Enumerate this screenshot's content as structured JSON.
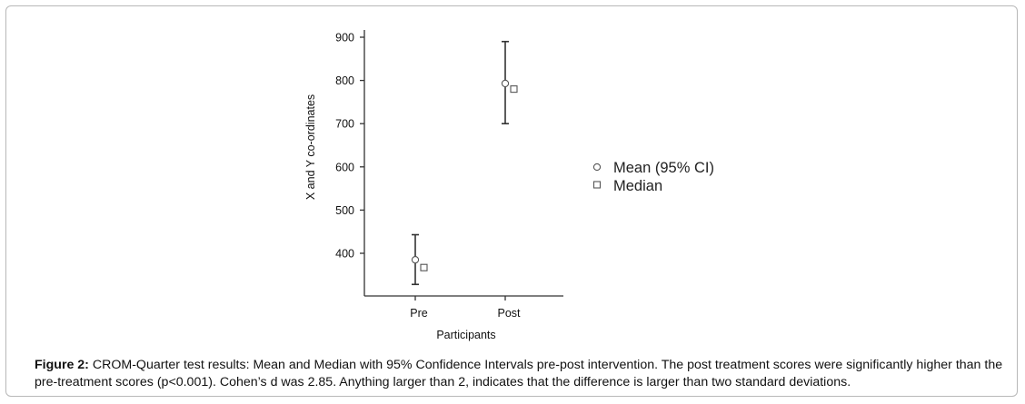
{
  "chart_data": {
    "type": "scatter",
    "categories": [
      "Pre",
      "Post"
    ],
    "series": [
      {
        "name": "Mean (95% CI)",
        "marker": "circle",
        "values": [
          385,
          793
        ],
        "ci_low": [
          328,
          700
        ],
        "ci_high": [
          443,
          890
        ]
      },
      {
        "name": "Median",
        "marker": "square",
        "values": [
          367,
          780
        ]
      }
    ],
    "xlabel": "Participants",
    "ylabel": "X and Y co-ordinates",
    "yticks": [
      400,
      500,
      600,
      700,
      800,
      900
    ],
    "ylim": [
      310,
      910
    ],
    "grid": false,
    "legend_position": "right",
    "colors": {
      "axis": "#333333",
      "marker_stroke": "#555555",
      "errorbar": "#333333"
    }
  },
  "caption": {
    "label": "Figure 2:",
    "text": " CROM-Quarter test results: Mean and Median with 95% Confidence Intervals pre-post intervention. The post treatment scores were significantly higher than the pre-treatment scores (p<0.001). Cohen’s d was 2.85. Anything larger than 2, indicates that the difference is larger than two standard deviations."
  }
}
